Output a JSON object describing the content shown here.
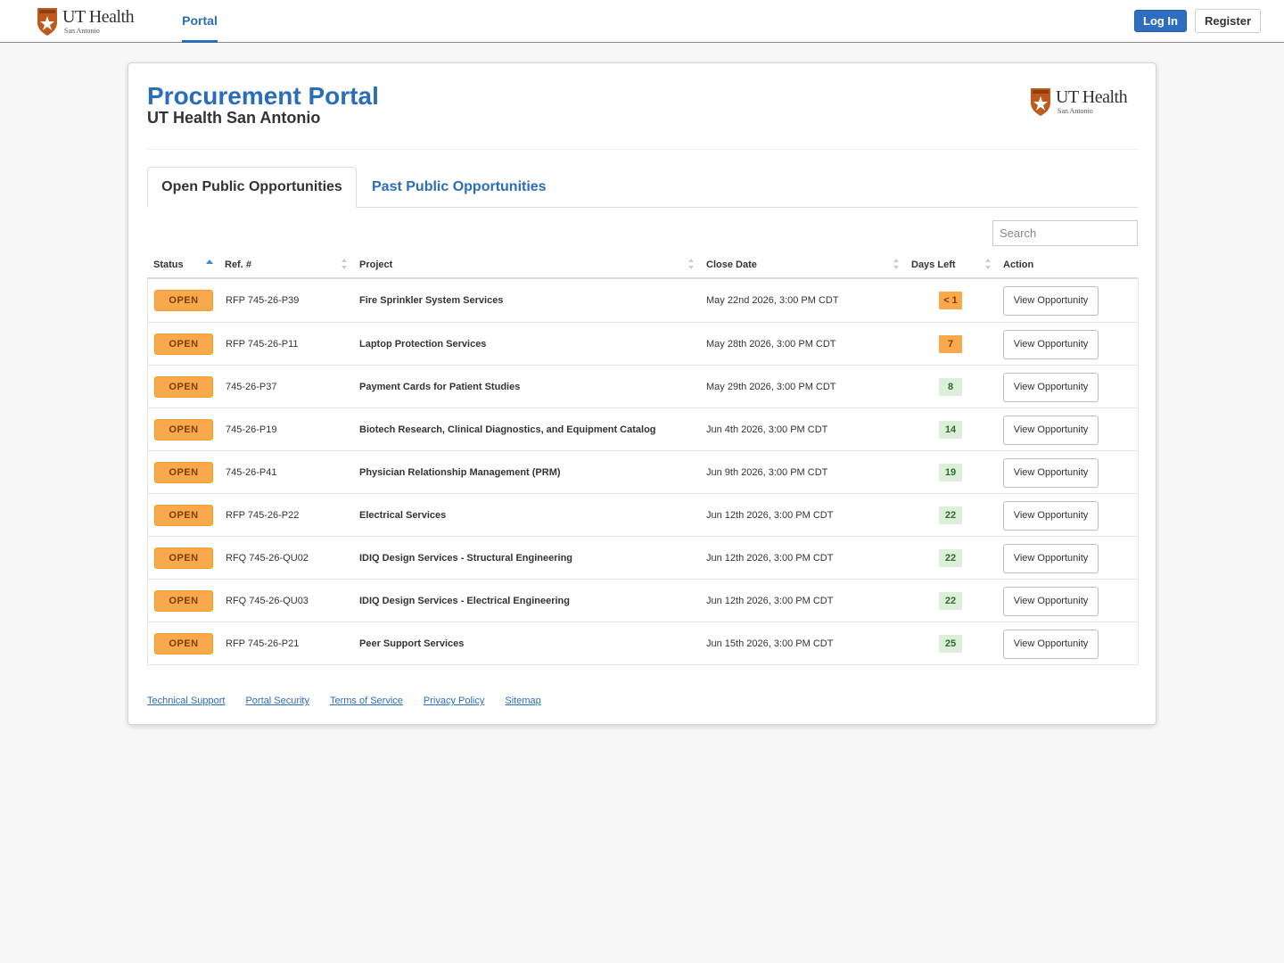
{
  "nav": {
    "logo_text": "UT Health",
    "logo_subtext": "San Antonio",
    "tab_portal": "Portal",
    "login_label": "Log In",
    "register_label": "Register"
  },
  "header": {
    "title": "Procurement Portal",
    "subtitle": "UT Health San Antonio",
    "logo_text": "UT Health",
    "logo_subtext": "San Antonio"
  },
  "tabs": {
    "open": "Open Public Opportunities",
    "past": "Past Public Opportunities"
  },
  "search": {
    "placeholder": "Search",
    "value": ""
  },
  "table": {
    "columns": [
      "Status",
      "Ref. #",
      "Project",
      "Close Date",
      "Days Left",
      "Action"
    ],
    "rows": [
      {
        "status": "OPEN",
        "ref": "RFP 745-26-P39",
        "project": "Fire Sprinkler System Services",
        "close_date": "May 22nd 2026, 3:00 PM CDT",
        "days_left": "< 1",
        "urgency": "urgent",
        "action": "View Opportunity"
      },
      {
        "status": "OPEN",
        "ref": "RFP 745-26-P11",
        "project": "Laptop Protection Services",
        "close_date": "May 28th 2026, 3:00 PM CDT",
        "days_left": "7",
        "urgency": "urgent",
        "action": "View Opportunity"
      },
      {
        "status": "OPEN",
        "ref": "745-26-P37",
        "project": "Payment Cards for Patient Studies",
        "close_date": "May 29th 2026, 3:00 PM CDT",
        "days_left": "8",
        "urgency": "ok",
        "action": "View Opportunity"
      },
      {
        "status": "OPEN",
        "ref": "745-26-P19",
        "project": "Biotech Research, Clinical Diagnostics, and Equipment Catalog",
        "close_date": "Jun 4th 2026, 3:00 PM CDT",
        "days_left": "14",
        "urgency": "ok",
        "action": "View Opportunity"
      },
      {
        "status": "OPEN",
        "ref": "745-26-P41",
        "project": "Physician Relationship Management (PRM)",
        "close_date": "Jun 9th 2026, 3:00 PM CDT",
        "days_left": "19",
        "urgency": "ok",
        "action": "View Opportunity"
      },
      {
        "status": "OPEN",
        "ref": "RFP 745-26-P22",
        "project": "Electrical Services",
        "close_date": "Jun 12th 2026, 3:00 PM CDT",
        "days_left": "22",
        "urgency": "ok",
        "action": "View Opportunity"
      },
      {
        "status": "OPEN",
        "ref": "RFQ 745-26-QU02",
        "project": "IDIQ Design Services - Structural Engineering",
        "close_date": "Jun 12th 2026, 3:00 PM CDT",
        "days_left": "22",
        "urgency": "ok",
        "action": "View Opportunity"
      },
      {
        "status": "OPEN",
        "ref": "RFQ 745-26-QU03",
        "project": "IDIQ Design Services - Electrical Engineering",
        "close_date": "Jun 12th 2026, 3:00 PM CDT",
        "days_left": "22",
        "urgency": "ok",
        "action": "View Opportunity"
      },
      {
        "status": "OPEN",
        "ref": "RFP 745-26-P21",
        "project": "Peer Support Services",
        "close_date": "Jun 15th 2026, 3:00 PM CDT",
        "days_left": "25",
        "urgency": "ok",
        "action": "View Opportunity"
      }
    ]
  },
  "footer": {
    "links": [
      "Technical Support",
      "Portal Security",
      "Terms of Service",
      "Privacy Policy",
      "Sitemap"
    ]
  },
  "colors": {
    "brand_blue": "#2a6ebb",
    "status_orange": "#f9a94b",
    "days_green_bg": "#dcefd9",
    "shield_orange": "#bf5a1e"
  }
}
